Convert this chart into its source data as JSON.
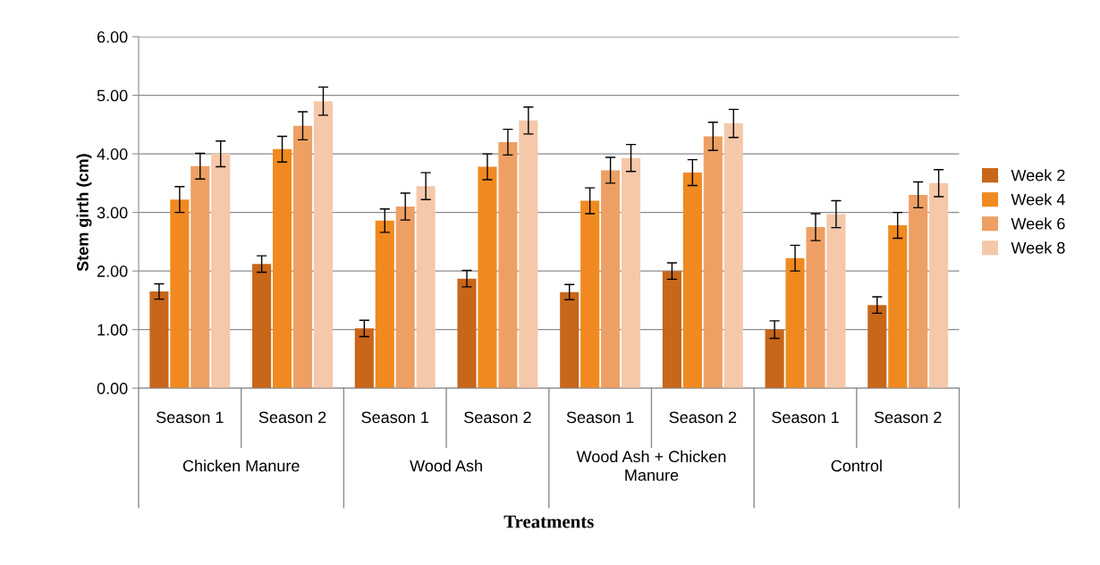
{
  "chart_data": {
    "type": "bar",
    "ylabel": "Stem girth (cm)",
    "xlabel": "Treatments",
    "categories": [
      "Season 1",
      "Season 2",
      "Season 1",
      "Season 2",
      "Season 1",
      "Season 2",
      "Season 1",
      "Season 2"
    ],
    "annotations": [
      "Chicken Manure",
      "Wood Ash",
      "Wood Ash + Chicken Manure",
      "Control"
    ],
    "series": [
      {
        "name": "Week 2",
        "color": "#c8661a",
        "values": [
          1.65,
          2.12,
          1.02,
          1.87,
          1.64,
          2.0,
          1.0,
          1.42
        ],
        "errors": [
          0.13,
          0.14,
          0.14,
          0.14,
          0.13,
          0.14,
          0.15,
          0.14
        ]
      },
      {
        "name": "Week 4",
        "color": "#f08a20",
        "values": [
          3.22,
          4.08,
          2.86,
          3.78,
          3.2,
          3.68,
          2.22,
          2.78
        ],
        "errors": [
          0.22,
          0.22,
          0.2,
          0.22,
          0.22,
          0.22,
          0.22,
          0.22
        ]
      },
      {
        "name": "Week 6",
        "color": "#eea064",
        "values": [
          3.79,
          4.48,
          3.1,
          4.2,
          3.72,
          4.3,
          2.75,
          3.3
        ],
        "errors": [
          0.22,
          0.24,
          0.23,
          0.22,
          0.22,
          0.24,
          0.23,
          0.22
        ]
      },
      {
        "name": "Week 8",
        "color": "#f5c8aa",
        "values": [
          4.0,
          4.9,
          3.45,
          4.57,
          3.93,
          4.52,
          2.97,
          3.5
        ],
        "errors": [
          0.22,
          0.24,
          0.23,
          0.23,
          0.23,
          0.24,
          0.23,
          0.23
        ]
      }
    ],
    "ylim": [
      0,
      6
    ],
    "yticks": [
      {
        "value": 0,
        "label": "0.00"
      },
      {
        "value": 1,
        "label": "1.00"
      },
      {
        "value": 2,
        "label": "2.00"
      },
      {
        "value": 3,
        "label": "3.00"
      },
      {
        "value": 4,
        "label": "4.00"
      },
      {
        "value": 5,
        "label": "5.00"
      },
      {
        "value": 6,
        "label": "6.00"
      }
    ],
    "grid": "y",
    "legend": "right"
  }
}
